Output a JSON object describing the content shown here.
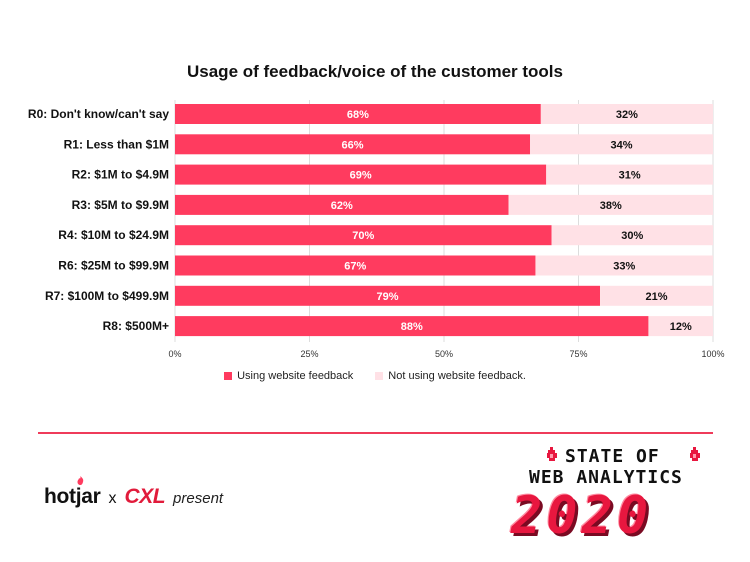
{
  "chart_data": {
    "type": "bar",
    "orientation": "horizontal",
    "stacked": true,
    "title": "Usage of feedback/voice of the customer tools",
    "categories": [
      "R0: Don't know/can't say",
      "R1: Less than $1M",
      "R2: $1M to $4.9M",
      "R3: $5M to $9.9M",
      "R4: $10M to $24.9M",
      "R6: $25M to $99.9M",
      "R7: $100M to $499.9M",
      "R8: $500M+"
    ],
    "series": [
      {
        "name": "Using website feedback",
        "values": [
          68,
          66,
          69,
          62,
          70,
          67,
          79,
          88
        ],
        "labels": [
          "68%",
          "66%",
          "69%",
          "62%",
          "70%",
          "67%",
          "79%",
          "88%"
        ],
        "color": "#ff3b5f"
      },
      {
        "name": "Not using website feedback.",
        "values": [
          32,
          34,
          31,
          38,
          30,
          33,
          21,
          12
        ],
        "labels": [
          "32%",
          "34%",
          "31%",
          "38%",
          "30%",
          "33%",
          "21%",
          "12%"
        ],
        "color": "#ffe1e6"
      }
    ],
    "xlim": [
      0,
      100
    ],
    "xticks": [
      "0%",
      "25%",
      "50%",
      "75%",
      "100%"
    ],
    "grid": "vertical",
    "legend_position": "bottom"
  },
  "footer": {
    "brand_hotjar": "hotjar",
    "brand_x": "x",
    "brand_cxl": "CXL",
    "brand_present": "present",
    "logo_line1": "STATE OF",
    "logo_line2": "WEB ANALYTICS",
    "logo_year": "2020",
    "accent_color": "#ef3b5a"
  }
}
